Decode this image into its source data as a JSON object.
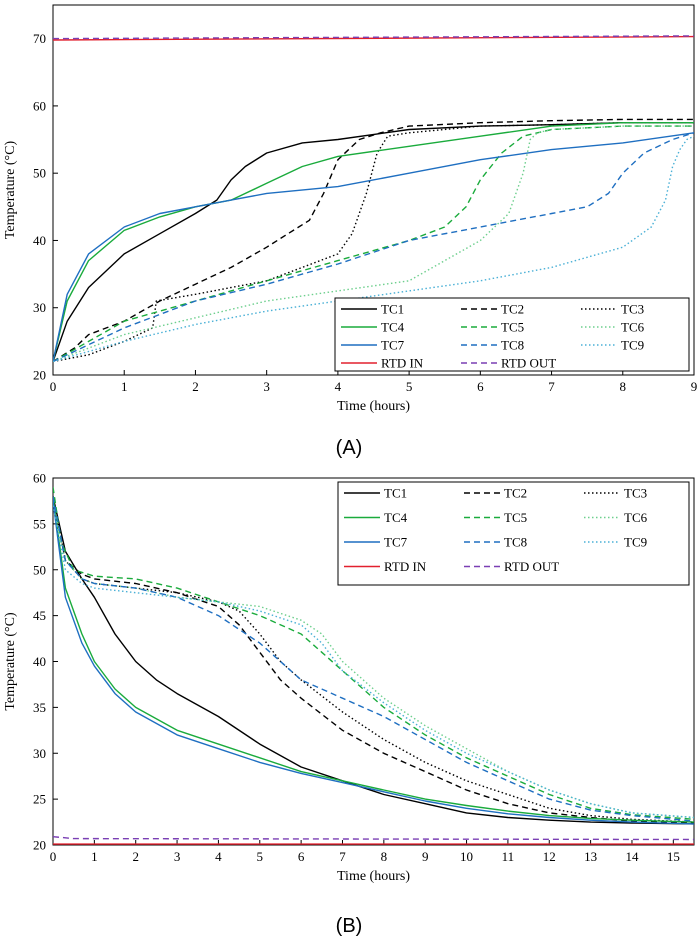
{
  "colors": {
    "black": "#000000",
    "green": "#1aab3c",
    "blue": "#1f6fc1",
    "red": "#e2202e",
    "purple": "#7a3fb4",
    "light_green": "#6dcf8d",
    "light_blue": "#4ab0d6"
  },
  "chart_data": [
    {
      "type": "line",
      "panel_label": "(A)",
      "xlabel": "Time (hours)",
      "ylabel": "Temperature (°C)",
      "xlim": [
        0,
        9
      ],
      "ylim": [
        20,
        75
      ],
      "xticks": [
        0,
        1,
        2,
        3,
        4,
        5,
        6,
        7,
        8,
        9
      ],
      "yticks": [
        20,
        30,
        40,
        50,
        60,
        70
      ],
      "legend": {
        "position": "bottom-right",
        "columns": 3
      },
      "series": [
        {
          "name": "TC1",
          "color": "black",
          "dash": "solid",
          "x": [
            0,
            0.2,
            0.5,
            1,
            1.5,
            2,
            2.3,
            2.5,
            2.7,
            3,
            3.5,
            4,
            5,
            6,
            7,
            8,
            9
          ],
          "y": [
            22,
            28,
            33,
            38,
            41,
            44,
            46,
            49,
            51,
            53,
            54.5,
            55,
            56.5,
            57,
            57.2,
            57.5,
            57.5
          ]
        },
        {
          "name": "TC2",
          "color": "black",
          "dash": "dash",
          "x": [
            0,
            0.3,
            0.5,
            1,
            1.5,
            2,
            2.5,
            3,
            3.3,
            3.6,
            3.8,
            4,
            4.3,
            4.6,
            5,
            6,
            7,
            8,
            9
          ],
          "y": [
            22,
            24,
            26,
            28,
            31,
            33.5,
            36,
            39,
            41,
            43,
            47,
            52,
            55,
            56,
            57,
            57.5,
            57.8,
            58,
            58
          ]
        },
        {
          "name": "TC3",
          "color": "black",
          "dash": "dot",
          "x": [
            0,
            0.5,
            1,
            1.4,
            1.45,
            2,
            2.5,
            3,
            3.5,
            4,
            4.2,
            4.4,
            4.55,
            4.7,
            5,
            6,
            7,
            8,
            9
          ],
          "y": [
            22,
            23,
            25,
            27,
            31,
            32,
            33,
            34,
            36,
            38,
            41,
            47,
            53,
            55.5,
            56,
            57,
            57.2,
            57.5,
            57.5
          ]
        },
        {
          "name": "TC4",
          "color": "green",
          "dash": "solid",
          "x": [
            0,
            0.2,
            0.5,
            1,
            1.5,
            2,
            2.5,
            3,
            3.5,
            4,
            5,
            6,
            7,
            8,
            9
          ],
          "y": [
            22,
            31,
            37,
            41.5,
            43.5,
            45,
            46,
            48.5,
            51,
            52.5,
            54,
            55.5,
            57,
            57.5,
            57.5
          ]
        },
        {
          "name": "TC5",
          "color": "green",
          "dash": "dash",
          "x": [
            0,
            0.5,
            1,
            2,
            3,
            4,
            5,
            5.5,
            5.8,
            6,
            6.3,
            6.6,
            7,
            8,
            9
          ],
          "y": [
            22,
            25,
            28,
            31,
            34,
            37,
            40,
            42,
            45,
            49,
            53,
            55.5,
            56.5,
            57,
            57
          ]
        },
        {
          "name": "TC6",
          "color": "light_green",
          "dash": "dot",
          "x": [
            0,
            0.5,
            1,
            2,
            3,
            4,
            5,
            6,
            6.4,
            6.6,
            6.7,
            6.8,
            7,
            8,
            9
          ],
          "y": [
            22,
            24,
            26,
            28.5,
            31,
            32.5,
            34,
            40,
            44,
            50,
            55,
            56,
            56.5,
            57,
            57
          ]
        },
        {
          "name": "TC7",
          "color": "blue",
          "dash": "solid",
          "x": [
            0,
            0.2,
            0.5,
            1,
            1.5,
            2,
            2.5,
            3,
            4,
            5,
            6,
            7,
            8,
            9
          ],
          "y": [
            22,
            32,
            38,
            42,
            44,
            45,
            46,
            47,
            48,
            50,
            52,
            53.5,
            54.5,
            56
          ]
        },
        {
          "name": "TC8",
          "color": "blue",
          "dash": "dash",
          "x": [
            0,
            0.5,
            1,
            2,
            3,
            4,
            5,
            6,
            7,
            7.5,
            7.8,
            8,
            8.3,
            8.7,
            9
          ],
          "y": [
            22,
            24.5,
            27,
            31,
            33.5,
            36.5,
            40,
            42,
            44,
            45,
            47,
            50,
            53,
            55,
            56
          ]
        },
        {
          "name": "TC9",
          "color": "light_blue",
          "dash": "dot",
          "x": [
            0,
            0.5,
            1,
            2,
            3,
            4,
            5,
            6,
            7,
            8,
            8.4,
            8.6,
            8.7,
            8.8,
            8.9,
            9
          ],
          "y": [
            22,
            23.5,
            25,
            27.5,
            29.5,
            31,
            32.5,
            34,
            36,
            39,
            42,
            46,
            51,
            53.5,
            55,
            55.5
          ]
        },
        {
          "name": "RTD IN",
          "color": "red",
          "dash": "solid",
          "x": [
            0,
            9
          ],
          "y": [
            69.8,
            70.3
          ]
        },
        {
          "name": "RTD OUT",
          "color": "purple",
          "dash": "dash",
          "x": [
            0,
            9
          ],
          "y": [
            70,
            70.4
          ]
        }
      ]
    },
    {
      "type": "line",
      "panel_label": "(B)",
      "xlabel": "Time (hours)",
      "ylabel": "Temperature (°C)",
      "xlim": [
        0,
        15.5
      ],
      "ylim": [
        20,
        60
      ],
      "xticks": [
        0,
        1,
        2,
        3,
        4,
        5,
        6,
        7,
        8,
        9,
        10,
        11,
        12,
        13,
        14,
        15
      ],
      "yticks": [
        20,
        25,
        30,
        35,
        40,
        45,
        50,
        55,
        60
      ],
      "legend": {
        "position": "top-right",
        "columns": 3
      },
      "series": [
        {
          "name": "TC1",
          "color": "black",
          "dash": "solid",
          "x": [
            0,
            0.3,
            0.7,
            1,
            1.5,
            2,
            2.5,
            3,
            4,
            5,
            6,
            7,
            8,
            9,
            10,
            11,
            12,
            13,
            14,
            15.5
          ],
          "y": [
            58,
            52,
            49,
            47,
            43,
            40,
            38,
            36.5,
            34,
            31,
            28.5,
            27,
            25.5,
            24.5,
            23.5,
            23,
            22.7,
            22.5,
            22.4,
            22.3
          ]
        },
        {
          "name": "TC2",
          "color": "black",
          "dash": "dash",
          "x": [
            0,
            0.3,
            0.7,
            1,
            2,
            3,
            4,
            4.5,
            5,
            5.5,
            6,
            7,
            8,
            9,
            10,
            11,
            12,
            13,
            14,
            15.5
          ],
          "y": [
            58,
            51,
            49.5,
            49,
            48.5,
            47.5,
            46,
            44,
            41,
            38,
            36,
            32.5,
            30,
            28,
            26,
            24.5,
            23.5,
            23,
            22.6,
            22.4
          ]
        },
        {
          "name": "TC3",
          "color": "black",
          "dash": "dot",
          "x": [
            0,
            0.3,
            0.7,
            1,
            2,
            3,
            4,
            4.5,
            5,
            5.5,
            6,
            7,
            8,
            9,
            10,
            11,
            12,
            13,
            14,
            15.5
          ],
          "y": [
            58,
            51,
            49,
            48.5,
            48,
            47.5,
            46.5,
            45.5,
            43,
            40,
            38,
            34.5,
            31.5,
            29,
            27,
            25.5,
            24,
            23.2,
            22.8,
            22.5
          ]
        },
        {
          "name": "TC4",
          "color": "green",
          "dash": "solid",
          "x": [
            0,
            0.3,
            0.7,
            1,
            1.5,
            2,
            3,
            4,
            5,
            6,
            7,
            8,
            9,
            10,
            11,
            12,
            13,
            14,
            15.5
          ],
          "y": [
            58,
            48,
            43,
            40,
            37,
            35,
            32.5,
            31,
            29.5,
            28,
            27,
            26,
            25,
            24.3,
            23.7,
            23.2,
            22.9,
            22.7,
            22.5
          ]
        },
        {
          "name": "TC5",
          "color": "green",
          "dash": "dash",
          "x": [
            0,
            0.2,
            0.5,
            1,
            2,
            3,
            4,
            5,
            6,
            6.5,
            7,
            8,
            9,
            10,
            11,
            12,
            13,
            14,
            15.5
          ],
          "y": [
            59,
            53,
            50,
            49.3,
            49,
            48,
            46.5,
            45,
            43,
            41,
            39,
            35,
            32,
            29.5,
            27.5,
            25.5,
            24,
            23.3,
            22.8
          ]
        },
        {
          "name": "TC6",
          "color": "light_green",
          "dash": "dot",
          "x": [
            0,
            0.3,
            0.7,
            1,
            2,
            3,
            4,
            5,
            6,
            6.5,
            7,
            8,
            9,
            10,
            11,
            12,
            13,
            14,
            15.5
          ],
          "y": [
            57,
            51,
            49,
            48.5,
            48,
            47,
            46.5,
            46,
            44.5,
            43,
            40,
            36,
            33,
            30.5,
            28,
            26,
            24.5,
            23.5,
            23
          ]
        },
        {
          "name": "TC7",
          "color": "blue",
          "dash": "solid",
          "x": [
            0,
            0.3,
            0.7,
            1,
            1.5,
            2,
            3,
            4,
            5,
            6,
            7,
            8,
            9,
            10,
            11,
            12,
            13,
            14,
            15.5
          ],
          "y": [
            57.5,
            47,
            42,
            39.5,
            36.5,
            34.5,
            32,
            30.5,
            29,
            27.8,
            26.8,
            25.8,
            24.8,
            24,
            23.4,
            23,
            22.7,
            22.5,
            22.3
          ]
        },
        {
          "name": "TC8",
          "color": "blue",
          "dash": "dash",
          "x": [
            0,
            0.3,
            0.7,
            1,
            2,
            3,
            4,
            5,
            5.5,
            6,
            7,
            8,
            9,
            10,
            11,
            12,
            13,
            14,
            15.5
          ],
          "y": [
            58,
            51,
            49,
            48.5,
            48,
            47,
            45,
            42,
            40,
            38,
            36,
            34,
            31.5,
            29,
            27,
            25,
            23.8,
            23.2,
            22.6
          ]
        },
        {
          "name": "TC9",
          "color": "light_blue",
          "dash": "dot",
          "x": [
            0,
            0.3,
            0.7,
            1,
            2,
            3,
            4,
            5,
            6,
            6.5,
            7,
            8,
            9,
            10,
            11,
            12,
            13,
            14,
            15.5
          ],
          "y": [
            57,
            50,
            48.5,
            48,
            47.5,
            47,
            46.5,
            45.5,
            44,
            42,
            39,
            35.5,
            32.5,
            30,
            28,
            26,
            24.5,
            23.5,
            23
          ]
        },
        {
          "name": "RTD IN",
          "color": "red",
          "dash": "solid",
          "x": [
            0,
            15.5
          ],
          "y": [
            20.1,
            20.1
          ]
        },
        {
          "name": "RTD OUT",
          "color": "purple",
          "dash": "dash",
          "x": [
            0,
            0.5,
            15.5
          ],
          "y": [
            20.9,
            20.7,
            20.6
          ]
        }
      ]
    }
  ]
}
